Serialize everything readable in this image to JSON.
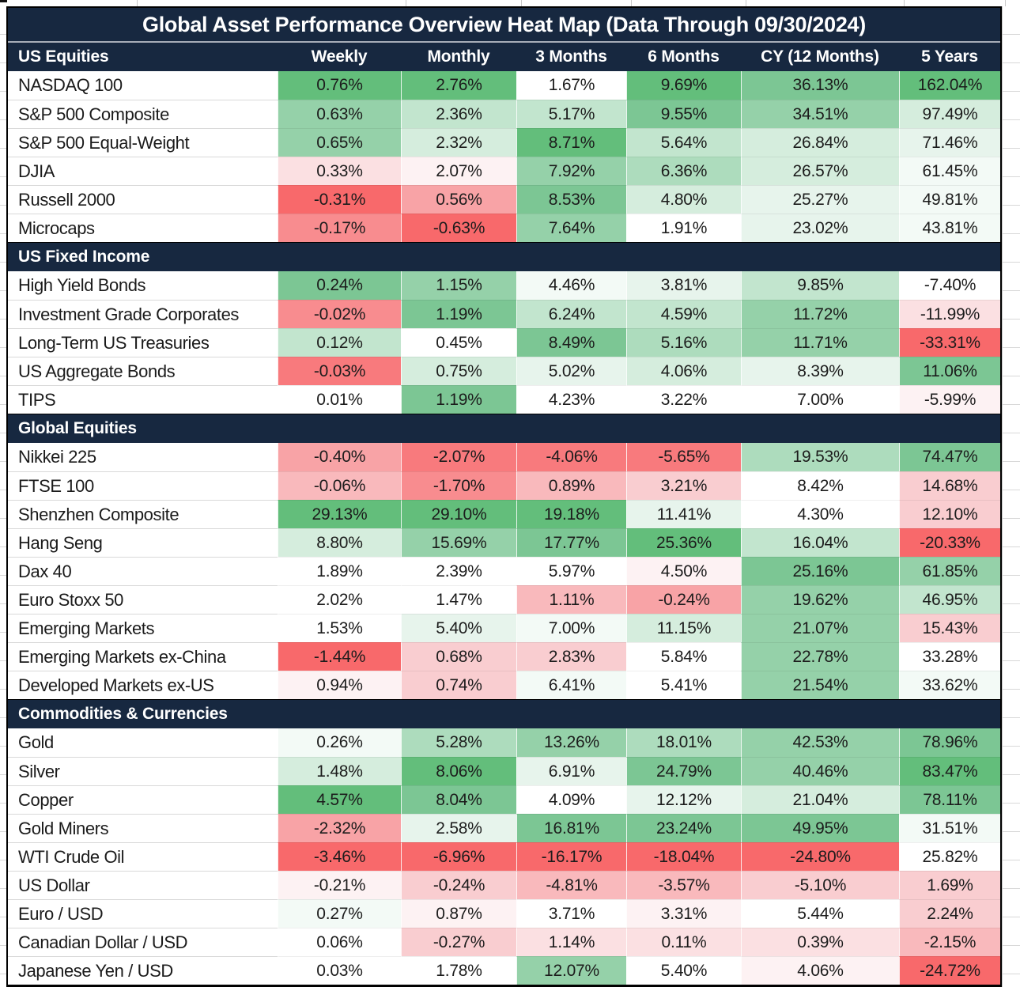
{
  "title": "Global Asset Performance Overview Heat Map (Data Through 09/30/2024)",
  "palette": {
    "W": "#FFFFFF",
    "G1": "#F3FAF6",
    "G2": "#E7F4EC",
    "G3": "#D5EDDD",
    "G4": "#C2E5CE",
    "G5": "#ADDCBD",
    "G6": "#95D1A9",
    "G7": "#7CC694",
    "G8": "#63BE7B",
    "R1": "#FDF2F3",
    "R2": "#FBE0E2",
    "R3": "#F9CDD0",
    "R4": "#F9B9BC",
    "R5": "#F8A3A6",
    "R6": "#F88C8F",
    "R7": "#F87A7D",
    "R8": "#F8696B"
  },
  "colors": {
    "navy": "#172840",
    "border": "#000000",
    "gridline": "#D8D8D8",
    "text": "#1C1C1C",
    "header_text": "#FFFFFF",
    "title_divider": "#A7ADB8"
  },
  "chart_data": {
    "type": "heatmap",
    "title": "Global Asset Performance Overview Heat Map (Data Through 09/30/2024)",
    "value_format": "percent_2dp",
    "columns": [
      "Weekly",
      "Monthly",
      "3 Months",
      "6 Months",
      "CY (12 Months)",
      "5 Years"
    ],
    "legend_note": "cell color encodes relative performance: green = strong, white = neutral, red = weak",
    "sections": [
      {
        "name": "US Equities",
        "rows": [
          {
            "label": "NASDAQ 100",
            "values": [
              0.76,
              2.76,
              1.67,
              9.69,
              36.13,
              162.04
            ],
            "colors": [
              "G8",
              "G8",
              "W",
              "G8",
              "G7",
              "G8"
            ]
          },
          {
            "label": "S&P 500 Composite",
            "values": [
              0.63,
              2.36,
              5.17,
              9.55,
              34.51,
              97.49
            ],
            "colors": [
              "G6",
              "G4",
              "G4",
              "G7",
              "G6",
              "G3"
            ]
          },
          {
            "label": "S&P 500 Equal-Weight",
            "values": [
              0.65,
              2.32,
              8.71,
              5.64,
              26.84,
              71.46
            ],
            "colors": [
              "G6",
              "G3",
              "G8",
              "G4",
              "G3",
              "G2"
            ]
          },
          {
            "label": "DJIA",
            "values": [
              0.33,
              2.07,
              7.92,
              6.36,
              26.57,
              61.45
            ],
            "colors": [
              "R2",
              "R1",
              "G6",
              "G5",
              "G3",
              "G1"
            ]
          },
          {
            "label": "Russell 2000",
            "values": [
              -0.31,
              0.56,
              8.53,
              4.8,
              25.27,
              49.81
            ],
            "colors": [
              "R8",
              "R5",
              "G7",
              "G3",
              "G2",
              "G1"
            ]
          },
          {
            "label": "Microcaps",
            "values": [
              -0.17,
              -0.63,
              7.64,
              1.91,
              23.02,
              43.81
            ],
            "colors": [
              "R6",
              "R8",
              "G6",
              "W",
              "G2",
              "G1"
            ]
          }
        ]
      },
      {
        "name": "US Fixed Income",
        "rows": [
          {
            "label": "High Yield Bonds",
            "values": [
              0.24,
              1.15,
              4.46,
              3.81,
              9.85,
              -7.4
            ],
            "colors": [
              "G7",
              "G6",
              "G1",
              "G2",
              "G4",
              "W"
            ]
          },
          {
            "label": "Investment Grade Corporates",
            "values": [
              -0.02,
              1.19,
              6.24,
              4.59,
              11.72,
              -11.99
            ],
            "colors": [
              "R6",
              "G7",
              "G4",
              "G4",
              "G6",
              "R2"
            ]
          },
          {
            "label": "Long-Term US Treasuries",
            "values": [
              0.12,
              0.45,
              8.49,
              5.16,
              11.71,
              -33.31
            ],
            "colors": [
              "G4",
              "W",
              "G7",
              "G5",
              "G6",
              "R8"
            ]
          },
          {
            "label": "US Aggregate Bonds",
            "values": [
              -0.03,
              0.75,
              5.02,
              4.06,
              8.39,
              11.06
            ],
            "colors": [
              "R7",
              "G3",
              "G2",
              "G3",
              "G2",
              "G7"
            ]
          },
          {
            "label": "TIPS",
            "values": [
              0.01,
              1.19,
              4.23,
              3.22,
              7.0,
              -5.99
            ],
            "colors": [
              "W",
              "G7",
              "W",
              "W",
              "W",
              "R1"
            ]
          }
        ]
      },
      {
        "name": "Global Equities",
        "rows": [
          {
            "label": "Nikkei 225",
            "values": [
              -0.4,
              -2.07,
              -4.06,
              -5.65,
              19.53,
              74.47
            ],
            "colors": [
              "R5",
              "R7",
              "R7",
              "R7",
              "G5",
              "G7"
            ]
          },
          {
            "label": "FTSE 100",
            "values": [
              -0.06,
              -1.7,
              0.89,
              3.21,
              8.42,
              14.68
            ],
            "colors": [
              "R4",
              "R6",
              "R4",
              "R3",
              "W",
              "R3"
            ]
          },
          {
            "label": "Shenzhen Composite",
            "values": [
              29.13,
              29.1,
              19.18,
              11.41,
              4.3,
              12.1
            ],
            "colors": [
              "G8",
              "G8",
              "G8",
              "G2",
              "W",
              "R3"
            ]
          },
          {
            "label": "Hang Seng",
            "values": [
              8.8,
              15.69,
              17.77,
              25.36,
              16.04,
              -20.33
            ],
            "colors": [
              "G3",
              "G6",
              "G7",
              "G8",
              "G4",
              "R8"
            ]
          },
          {
            "label": "Dax 40",
            "values": [
              1.89,
              2.39,
              5.97,
              4.5,
              25.16,
              61.85
            ],
            "colors": [
              "W",
              "W",
              "W",
              "R1",
              "G7",
              "G6"
            ]
          },
          {
            "label": "Euro Stoxx 50",
            "values": [
              2.02,
              1.47,
              1.11,
              -0.24,
              19.62,
              46.95
            ],
            "colors": [
              "W",
              "W",
              "R4",
              "R5",
              "G6",
              "G4"
            ]
          },
          {
            "label": "Emerging Markets",
            "values": [
              1.53,
              5.4,
              7.0,
              11.15,
              21.07,
              15.43
            ],
            "colors": [
              "W",
              "G2",
              "G1",
              "G3",
              "G6",
              "R3"
            ]
          },
          {
            "label": "Emerging Markets ex-China",
            "values": [
              -1.44,
              0.68,
              2.83,
              5.84,
              22.78,
              33.28
            ],
            "colors": [
              "R8",
              "R3",
              "R3",
              "W",
              "G6",
              "W"
            ]
          },
          {
            "label": "Developed Markets ex-US",
            "values": [
              0.94,
              0.74,
              6.41,
              5.41,
              21.54,
              33.62
            ],
            "colors": [
              "R1",
              "R3",
              "G1",
              "W",
              "G6",
              "G1"
            ]
          }
        ]
      },
      {
        "name": "Commodities & Currencies",
        "rows": [
          {
            "label": "Gold",
            "values": [
              0.26,
              5.28,
              13.26,
              18.01,
              42.53,
              78.96
            ],
            "colors": [
              "G1",
              "G5",
              "G6",
              "G5",
              "G6",
              "G7"
            ]
          },
          {
            "label": "Silver",
            "values": [
              1.48,
              8.06,
              6.91,
              24.79,
              40.46,
              83.47
            ],
            "colors": [
              "G3",
              "G8",
              "G2",
              "G7",
              "G6",
              "G8"
            ]
          },
          {
            "label": "Copper",
            "values": [
              4.57,
              8.04,
              4.09,
              12.12,
              21.04,
              78.11
            ],
            "colors": [
              "G8",
              "G7",
              "W",
              "G2",
              "G3",
              "G7"
            ]
          },
          {
            "label": "Gold Miners",
            "values": [
              -2.32,
              2.58,
              16.81,
              23.24,
              49.95,
              31.51
            ],
            "colors": [
              "R5",
              "G2",
              "G7",
              "G7",
              "G7",
              "G1"
            ]
          },
          {
            "label": "WTI Crude Oil",
            "values": [
              -3.46,
              -6.96,
              -16.17,
              -18.04,
              -24.8,
              25.82
            ],
            "colors": [
              "R8",
              "R8",
              "R8",
              "R8",
              "R8",
              "W"
            ]
          },
          {
            "label": "US Dollar",
            "values": [
              -0.21,
              -0.24,
              -4.81,
              -3.57,
              -5.1,
              1.69
            ],
            "colors": [
              "R1",
              "R3",
              "R4",
              "R4",
              "R3",
              "R3"
            ]
          },
          {
            "label": "Euro / USD",
            "values": [
              0.27,
              0.87,
              3.71,
              3.31,
              5.44,
              2.24
            ],
            "colors": [
              "G1",
              "R1",
              "W",
              "R1",
              "W",
              "R3"
            ]
          },
          {
            "label": "Canadian Dollar / USD",
            "values": [
              0.06,
              -0.27,
              1.14,
              0.11,
              0.39,
              -2.15
            ],
            "colors": [
              "W",
              "R3",
              "R2",
              "R2",
              "R2",
              "R4"
            ]
          },
          {
            "label": "Japanese Yen / USD",
            "values": [
              0.03,
              1.78,
              12.07,
              5.4,
              4.06,
              -24.72
            ],
            "colors": [
              "W",
              "W",
              "G6",
              "W",
              "R1",
              "R8"
            ]
          }
        ]
      }
    ],
    "partial_bottom_row_colors": [
      "R3",
      "W",
      "R2",
      "R7",
      "G2",
      "G6"
    ]
  }
}
